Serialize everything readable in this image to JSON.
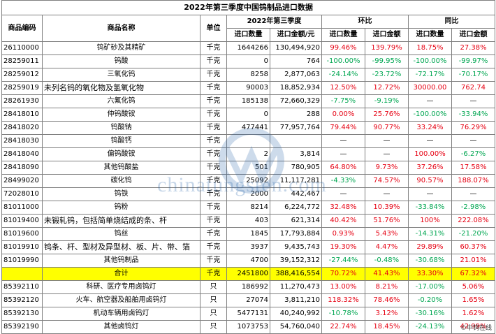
{
  "title": "2022年第三季度中国钨制品进口数据",
  "headers": {
    "code": "商品编码",
    "name": "商品名称",
    "unit": "单位",
    "period": "2022年第三季度",
    "qoq": "环比",
    "yoy": "同比",
    "import_qty": "进口数量",
    "import_value": "进口金额/元",
    "qty": "进口数量",
    "value": "进口金额"
  },
  "rows": [
    {
      "code": "26110000",
      "name": "钨矿砂及其精矿",
      "unit": "千克",
      "qty": "1644266",
      "value": "130,494,920",
      "qoq_qty": "99.46%",
      "qoq_val": "139.79%",
      "yoy_qty": "18.75%",
      "yoy_val": "27.38%"
    },
    {
      "code": "28259011",
      "name": "钨酸",
      "unit": "千克",
      "qty": "0",
      "value": "764",
      "qoq_qty": "-100.00%",
      "qoq_val": "-99.95%",
      "yoy_qty": "-100.00%",
      "yoy_val": "-99.97%"
    },
    {
      "code": "28259012",
      "name": "三氧化钨",
      "unit": "千克",
      "qty": "8258",
      "value": "2,877,063",
      "qoq_qty": "-24.14%",
      "qoq_val": "-23.72%",
      "yoy_qty": "-72.17%",
      "yoy_val": "-70.17%"
    },
    {
      "code": "28259019",
      "name": "未列名钨的氧化物及氢氧化物",
      "unit": "千克",
      "qty": "90003",
      "value": "18,852,934",
      "qoq_qty": "12.50%",
      "qoq_val": "12.72%",
      "yoy_qty": "30000.00",
      "yoy_val": "762.74"
    },
    {
      "code": "28261930",
      "name": "六氟化钨",
      "unit": "千克",
      "qty": "185138",
      "value": "72,660,329",
      "qoq_qty": "-7.75%",
      "qoq_val": "-9.19%",
      "yoy_qty": "—",
      "yoy_val": "—"
    },
    {
      "code": "28418010",
      "name": "仲钨酸铵",
      "unit": "千克",
      "qty": "0",
      "value": "288",
      "qoq_qty": "0.00%",
      "qoq_val": "25.76%",
      "yoy_qty": "-100.00%",
      "yoy_val": "-33.94%"
    },
    {
      "code": "28418020",
      "name": "钨酸钠",
      "unit": "千克",
      "qty": "477441",
      "value": "77,957,764",
      "qoq_qty": "79.44%",
      "qoq_val": "90.77%",
      "yoy_qty": "33.24%",
      "yoy_val": "76.29%"
    },
    {
      "code": "28418030",
      "name": "钨酸钙",
      "unit": "千克",
      "qty": "",
      "value": "",
      "qoq_qty": "—",
      "qoq_val": "—",
      "yoy_qty": "—",
      "yoy_val": "—"
    },
    {
      "code": "28418040",
      "name": "偏钨酸铵",
      "unit": "千克",
      "qty": "2",
      "value": "3,814",
      "qoq_qty": "—",
      "qoq_val": "—",
      "yoy_qty": "100.00%",
      "yoy_val": "-6.27%"
    },
    {
      "code": "28418090",
      "name": "其他钨酸盐",
      "unit": "千克",
      "qty": "501",
      "value": "780,905",
      "qoq_qty": "64.80%",
      "qoq_val": "9.73%",
      "yoy_qty": "37.26%",
      "yoy_val": "17.58%"
    },
    {
      "code": "28499020",
      "name": "碳化钨",
      "unit": "千克",
      "qty": "25092",
      "value": "11,117,281",
      "qoq_qty": "-4.33%",
      "qoq_val": "74.57%",
      "yoy_qty": "90.57%",
      "yoy_val": "188.07%"
    },
    {
      "code": "72028010",
      "name": "钨铁",
      "unit": "千克",
      "qty": "2000",
      "value": "442,467",
      "qoq_qty": "—",
      "qoq_val": "—",
      "yoy_qty": "—",
      "yoy_val": "—"
    },
    {
      "code": "81011000",
      "name": "钨粉",
      "unit": "千克",
      "qty": "8214",
      "value": "6,224,772",
      "qoq_qty": "32.48%",
      "qoq_val": "10.39%",
      "yoy_qty": "-33.84%",
      "yoy_val": "-2.98%"
    },
    {
      "code": "81019400",
      "name": "未锻轧钨，包括简单烧结成的条、杆",
      "unit": "千克",
      "qty": "403",
      "value": "621,314",
      "qoq_qty": "40.42%",
      "qoq_val": "51.76%",
      "yoy_qty": "100%",
      "yoy_val": "222.08%"
    },
    {
      "code": "81019600",
      "name": "钨丝",
      "unit": "千克",
      "qty": "1845",
      "value": "17,793,884",
      "qoq_qty": "0.93%",
      "qoq_val": "5.43%",
      "yoy_qty": "-14.31%",
      "yoy_val": "-21.20%"
    },
    {
      "code": "81019910",
      "name": "钨条、杆、型材及异型材、板、片、带、箔",
      "unit": "千克",
      "qty": "3937",
      "value": "9,435,743",
      "qoq_qty": "19.30%",
      "qoq_val": "4.47%",
      "yoy_qty": "29.89%",
      "yoy_val": "60.37%"
    },
    {
      "code": "81019990",
      "name": "其他钨制品",
      "unit": "千克",
      "qty": "4700",
      "value": "39,152,312",
      "qoq_qty": "-27.44%",
      "qoq_val": "-0.48%",
      "yoy_qty": "-30.68%",
      "yoy_val": "21.01%"
    }
  ],
  "total": {
    "code": "",
    "name": "合计",
    "unit": "千克",
    "qty": "2451800",
    "value": "388,416,554",
    "qoq_qty": "70.72%",
    "qoq_val": "41.43%",
    "yoy_qty": "33.30%",
    "yoy_val": "67.32%"
  },
  "lamp_rows": [
    {
      "code": "85392110",
      "name": "科研、医疗专用卤钨灯",
      "unit": "只",
      "qty": "186992",
      "value": "11,270,473",
      "qoq_qty": "13.00%",
      "qoq_val": "8.21%",
      "yoy_qty": "-17.00%",
      "yoy_val": "5.06%"
    },
    {
      "code": "85392120",
      "name": "火车、航空器及船舶用卤钨灯",
      "unit": "只",
      "qty": "27074",
      "value": "3,811,210",
      "qoq_qty": "118.32%",
      "qoq_val": "78.46%",
      "yoy_qty": "-0.20%",
      "yoy_val": "1.65%"
    },
    {
      "code": "85392130",
      "name": "机动车辆用卤钨灯",
      "unit": "只",
      "qty": "5477131",
      "value": "40,240,992",
      "qoq_qty": "-10.78%",
      "qoq_val": "3.12%",
      "yoy_qty": "-30.16%",
      "yoy_val": "1.62%"
    },
    {
      "code": "85392190",
      "name": "其他卤钨灯",
      "unit": "只",
      "qty": "1073753",
      "value": "54,760,040",
      "qoq_qty": "22.74%",
      "qoq_val": "18.45%",
      "yoy_qty": "-24.13%",
      "yoy_val": "42.99%"
    }
  ],
  "watermark": "chinatungsten.com",
  "credit": "©中钨在线",
  "colors": {
    "positive": "#e60012",
    "negative": "#00a651",
    "total_bg": "#ffff00"
  }
}
